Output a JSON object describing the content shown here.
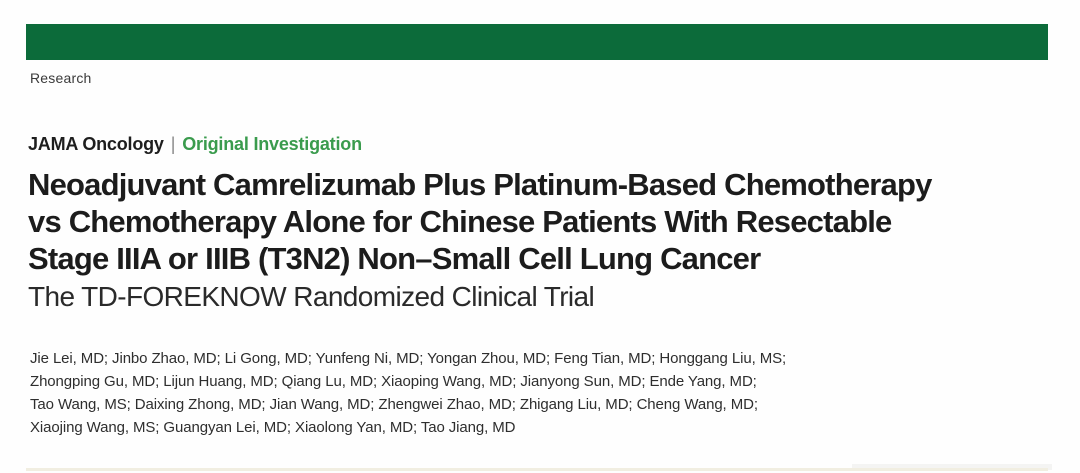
{
  "page": {
    "background": "#fefefe",
    "banner_color": "#0c6b3a",
    "category_green": "#3a9b4d"
  },
  "header": {
    "section_label": "Research"
  },
  "kicker": {
    "journal": "JAMA Oncology",
    "separator": "|",
    "category": "Original Investigation"
  },
  "title": {
    "line1": "Neoadjuvant Camrelizumab Plus Platinum-Based Chemotherapy",
    "line2": "vs Chemotherapy Alone for Chinese Patients With Resectable",
    "line3": "Stage IIIA or IIIB (T3N2) Non–Small Cell Lung Cancer",
    "subtitle": "The TD-FOREKNOW Randomized Clinical Trial"
  },
  "authors": {
    "line1": "Jie Lei, MD; Jinbo Zhao, MD; Li Gong, MD; Yunfeng Ni, MD; Yongan Zhou, MD; Feng Tian, MD; Honggang Liu, MS;",
    "line2": "Zhongping Gu, MD; Lijun Huang, MD; Qiang Lu, MD; Xiaoping Wang, MD; Jianyong Sun, MD; Ende Yang, MD;",
    "line3": "Tao Wang, MS; Daixing Zhong, MD; Jian Wang, MD; Zhengwei Zhao, MD; Zhigang Liu, MD; Cheng Wang, MD;",
    "line4": "Xiaojing Wang, MS; Guangyan Lei, MD; Xiaolong Yan, MD; Tao Jiang, MD"
  }
}
